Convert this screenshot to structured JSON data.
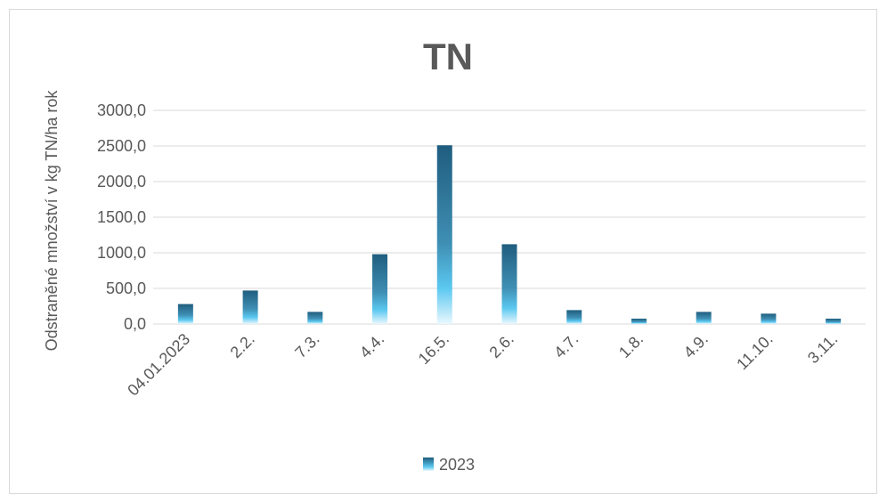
{
  "chart_data": {
    "type": "bar",
    "title": "TN",
    "xlabel": "",
    "ylabel": "Odstraněné množství v kg TN/ha rok",
    "categories": [
      "04.01.2023",
      "2.2.",
      "7.3.",
      "4.4.",
      "16.5.",
      "2.6.",
      "4.7.",
      "1.8.",
      "4.9.",
      "11.10.",
      "3.11."
    ],
    "series": [
      {
        "name": "2023",
        "values": [
          280,
          470,
          170,
          980,
          2510,
          1120,
          195,
          75,
          170,
          145,
          75
        ]
      }
    ],
    "yticks": [
      "0,0",
      "500,0",
      "1000,0",
      "1500,0",
      "2000,0",
      "2500,0",
      "3000,0"
    ],
    "ylim": [
      0,
      3000
    ],
    "grid": true,
    "legend_position": "bottom",
    "colors": {
      "bar_dark": "#1f5d7e",
      "bar_light": "#5bc8f0",
      "bar_pale": "#eaf8fe",
      "grid": "#d9d9d9",
      "text": "#595959"
    }
  }
}
